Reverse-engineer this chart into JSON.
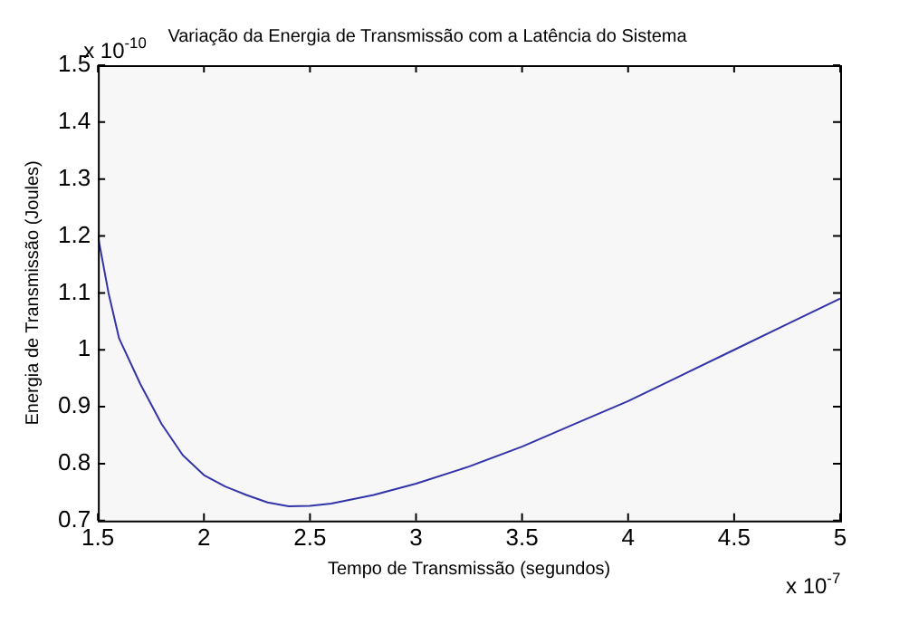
{
  "chart_data": {
    "type": "line",
    "title": "Variação da Energia de Transmissão com a Latência do Sistema",
    "xlabel": "Tempo de Transmissão (segundos)",
    "ylabel": "Energia de Transmissão (Joules)",
    "annotations": [
      "x 10$^{-10}$",
      "x 10$^{-7}$"
    ],
    "x": [
      1.5,
      1.55,
      1.6,
      1.7,
      1.8,
      1.9,
      2.0,
      2.1,
      2.2,
      2.3,
      2.4,
      2.5,
      2.6,
      2.8,
      3.0,
      3.25,
      3.5,
      3.75,
      4.0,
      4.25,
      4.5,
      4.75,
      5.0
    ],
    "series": [
      {
        "color": "#3333aa",
        "values": [
          1.2,
          1.1,
          1.02,
          0.94,
          0.87,
          0.815,
          0.78,
          0.76,
          0.745,
          0.732,
          0.725,
          0.726,
          0.73,
          0.745,
          0.765,
          0.795,
          0.83,
          0.87,
          0.91,
          0.955,
          1.0,
          1.045,
          1.09
        ]
      }
    ],
    "xlim": [
      1.5,
      5
    ],
    "xticks": [
      1.5,
      2,
      2.5,
      3,
      3.5,
      4,
      4.5,
      5
    ],
    "ylim": [
      0.7,
      1.5
    ],
    "yticks": [
      0.7,
      0.8,
      0.9,
      1,
      1.1,
      1.2,
      1.3,
      1.4,
      1.5
    ],
    "grid": false,
    "legend": false,
    "marker": "none",
    "line_style": "solid"
  }
}
